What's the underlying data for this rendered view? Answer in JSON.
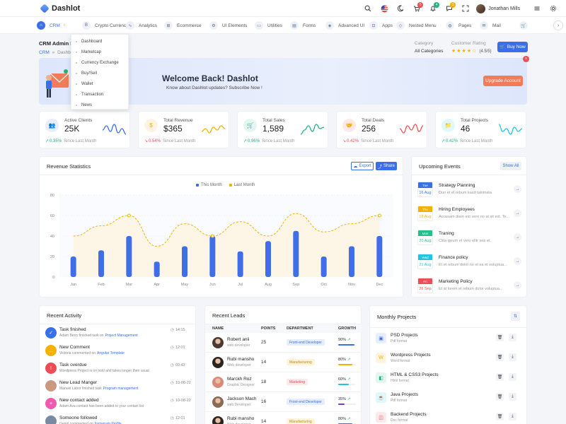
{
  "brand": {
    "name": "Dashlot"
  },
  "header": {
    "user_name": "Jonathan Mills",
    "badges": {
      "cart": "5",
      "notifications": "4",
      "messages": "2"
    }
  },
  "nav": {
    "items": [
      {
        "label": "CRM",
        "icon": "home-icon",
        "caret": "›"
      },
      {
        "label": "Crypto Currency",
        "icon": "bitcoin-icon",
        "caret": "⌄"
      },
      {
        "label": "Analytics",
        "icon": "chart-line-icon",
        "caret": ""
      },
      {
        "label": "Ecommerce",
        "icon": "cart-icon",
        "caret": ""
      },
      {
        "label": "UI Elements",
        "icon": "ui-elements-icon",
        "caret": ""
      },
      {
        "label": "Utilities",
        "icon": "briefcase-icon",
        "caret": ""
      },
      {
        "label": "Forms",
        "icon": "forms-icon",
        "caret": ""
      },
      {
        "label": "Advanced UI",
        "icon": "advanced-ui-icon",
        "caret": ""
      },
      {
        "label": "Apps",
        "icon": "apps-icon",
        "caret": ""
      },
      {
        "label": "Nested Menu",
        "icon": "nested-menu-icon",
        "caret": ""
      },
      {
        "label": "Pages",
        "icon": "pages-icon",
        "caret": ""
      },
      {
        "label": "Mail",
        "icon": "mail-icon",
        "caret": ""
      }
    ],
    "dropdown": [
      "Dashboard",
      "Marketcap",
      "Currency Exchange",
      "Buy/Sell",
      "Wallet",
      "Transaction",
      "News"
    ]
  },
  "page": {
    "title": "CRM Admin Dashboard",
    "breadcrumb_link": "CRM",
    "breadcrumb_sep": "»",
    "breadcrumb_current": "Dashboard",
    "category_label": "Category",
    "category_value": "All Categories",
    "rating_label": "Customer Rating",
    "rating_stars": "★★★★☆",
    "rating_value": "(4.5/5)",
    "buy_label": "Buy Now"
  },
  "banner": {
    "title": "Welcome Back! Dashlot",
    "subtitle": "Know about Dashlot updates? Subscribe Now !",
    "button": "Upgrade Account",
    "close": "×"
  },
  "stats": [
    {
      "label": "Active Clients",
      "value": "25K",
      "change": "0.35%",
      "dir": "up",
      "arrow": "↗",
      "since": "Since Last Month",
      "icon": "users-icon",
      "glyph": "👥",
      "icon_bg": "#e8eeff",
      "icon_color": "#3a6fe8",
      "line_color": "#3a6fe8"
    },
    {
      "label": "Total Revenue",
      "value": "$365",
      "change": "0.54%",
      "dir": "down",
      "arrow": "↘",
      "since": "Since Last Month",
      "icon": "dollar-icon",
      "glyph": "$",
      "icon_bg": "#fff4e0",
      "icon_color": "#f6b100",
      "line_color": "#f6b100"
    },
    {
      "label": "Total Sales",
      "value": "1,589",
      "change": "0.96%",
      "dir": "up",
      "arrow": "↗",
      "since": "Since Last Month",
      "icon": "shopping-cart-icon",
      "glyph": "🛒",
      "icon_bg": "#e3f7f0",
      "icon_color": "#22b07d",
      "line_color": "#22b07d"
    },
    {
      "label": "Total Deals",
      "value": "256",
      "change": "0.42%",
      "dir": "down",
      "arrow": "↘",
      "since": "Since Last Month",
      "icon": "handshake-icon",
      "glyph": "🤝",
      "icon_bg": "#fde8ea",
      "icon_color": "#ef4d56",
      "line_color": "#ef4d56"
    },
    {
      "label": "Total Projects",
      "value": "46",
      "change": "0.42%",
      "dir": "up",
      "arrow": "↗",
      "since": "Since Last Month",
      "icon": "folder-icon",
      "glyph": "📁",
      "icon_bg": "#e0f8fb",
      "icon_color": "#1ec6e2",
      "line_color": "#1ec6e2"
    }
  ],
  "revenue": {
    "title": "Revenue Statistics",
    "export_label": "Export",
    "share_label": "Share"
  },
  "chart_data": {
    "type": "bar",
    "title": "Revenue Statistics",
    "categories": [
      "Jan",
      "Feb",
      "Mar",
      "Apr",
      "May",
      "Jun",
      "Jul",
      "Aug",
      "Sep",
      "Oct",
      "Nov",
      "Dec"
    ],
    "series": [
      {
        "name": "This Month",
        "type": "bar",
        "color": "#3f6ee8",
        "values": [
          20,
          26,
          40,
          15,
          30,
          40,
          25,
          35,
          45,
          20,
          30,
          40
        ]
      },
      {
        "name": "Last Month",
        "type": "line",
        "color": "#f6b100",
        "values": [
          40,
          50,
          60,
          30,
          52,
          40,
          54,
          40,
          62,
          44,
          52,
          60
        ]
      }
    ],
    "yticks": [
      0,
      20,
      40,
      60,
      80
    ],
    "ylim": [
      0,
      80
    ],
    "legend": "top-center",
    "grid": true
  },
  "events": {
    "title": "Upcoming Events",
    "show_all": "Show All",
    "items": [
      {
        "day": "Tue",
        "date": "16 Aug",
        "title": "Strategy Planning",
        "desc": "Duo et et rebum kasd takimata",
        "color": "#3a6fe8"
      },
      {
        "day": "Thu",
        "date": "18 Aug",
        "title": "Hiring Employees",
        "desc": "Accusam diam est vero no at sit est. Te...",
        "color": "#f6b100"
      },
      {
        "day": "Mon",
        "date": "20 Aug",
        "title": "Traning",
        "desc": "Clita ipsum et vero elitr sea et.",
        "color": "#22c08a"
      },
      {
        "day": "Wed",
        "date": "21 Aug",
        "title": "Finance policy",
        "desc": "Et et rebum dolor no et ea et voluptua...",
        "color": "#1ec6e2"
      },
      {
        "day": "Fri",
        "date": "26 Sep",
        "title": "Marketing Policy",
        "desc": "Et at lorem et rebum dolor voluptua...",
        "color": "#ef4d56"
      }
    ]
  },
  "activity": {
    "title": "Recent Activity",
    "items": [
      {
        "title": "Task finished",
        "desc": "Adam Berry finished task on",
        "link": "Project Management",
        "time": "14:15",
        "color": "#3a6fe8",
        "glyph": "✓",
        "icon": "check-icon"
      },
      {
        "title": "New Comment",
        "desc": "Victoria commented on",
        "link": "Angular Template",
        "time": "12:01",
        "color": "#f6b100",
        "glyph": "…",
        "icon": "comment-icon"
      },
      {
        "title": "Task overdue",
        "desc": "Wordpress Project is on hold and takes longer then usual",
        "link": "",
        "time": "09:43",
        "color": "#ef4d56",
        "glyph": "!",
        "icon": "alert-icon"
      },
      {
        "title": "New Lead Manger",
        "desc": "Manuel Labor finished task",
        "link": "Program management",
        "time": "10-08-22",
        "color": "#c89b80",
        "glyph": "",
        "icon": "avatar-icon"
      },
      {
        "title": "New contact added",
        "desc": "Adam Ava contact has been added to your contact list",
        "link": "",
        "time": "10-08-22",
        "color": "#ef5ab0",
        "glyph": "+",
        "icon": "contact-add-icon"
      },
      {
        "title": "Someone followed",
        "desc": "Genni commented on",
        "link": "Instagram Profile",
        "time": "12:01",
        "color": "#7a8aa0",
        "glyph": "",
        "icon": "avatar-icon"
      }
    ]
  },
  "leads": {
    "title": "Recent Leads",
    "headers": [
      "NAME",
      "POINTS",
      "DEPARTMENT",
      "GROWTH"
    ],
    "rows": [
      {
        "name": "Robert anii",
        "role": "web developer",
        "points": "25",
        "dept": "Front-end Developer",
        "dept_bg": "#e5edff",
        "dept_color": "#3a6fe8",
        "pct": "90%",
        "growth": 90,
        "bar": "#3a6fe8",
        "arrow": "↗",
        "av": "#4a3a32"
      },
      {
        "name": "Rubi mansho",
        "role": "Web developer",
        "points": "14",
        "dept": "Manufacturing",
        "dept_bg": "#fff3d9",
        "dept_color": "#c48b00",
        "pct": "80%",
        "growth": 80,
        "bar": "#f6b100",
        "arrow": "↗",
        "av": "#2c2420"
      },
      {
        "name": "Marckh Roz",
        "role": "Graphic Designer",
        "points": "18",
        "dept": "Marketing",
        "dept_bg": "#fde8ea",
        "dept_color": "#ef4d56",
        "pct": "60%",
        "growth": 60,
        "bar": "#1ec6e2",
        "arrow": "↗",
        "av": "#d98a7a"
      },
      {
        "name": "Jackson Mach",
        "role": "web Developer",
        "points": "16",
        "dept": "Front-end Developer",
        "dept_bg": "#e5edff",
        "dept_color": "#3a6fe8",
        "pct": "35%",
        "growth": 35,
        "bar": "#6f42c1",
        "arrow": "↗",
        "av": "#8a6a55"
      },
      {
        "name": "Rubi mansho",
        "role": "Web developer",
        "points": "14",
        "dept": "Manufacturing",
        "dept_bg": "#fff3d9",
        "dept_color": "#c48b00",
        "pct": "80%",
        "growth": 80,
        "bar": "#3a6fe8",
        "arrow": "↗",
        "av": "#2c2420"
      }
    ]
  },
  "projects": {
    "title": "Monthly Projects",
    "items": [
      {
        "name": "PSD Projects",
        "type": "Pdf format",
        "color": "#3a6fe8",
        "bg": "#e8eeff",
        "glyph": "▣",
        "icon": "psd-icon"
      },
      {
        "name": "Wordpress Projects",
        "type": "Word format",
        "color": "#f6b100",
        "bg": "#fff4e0",
        "glyph": "W",
        "icon": "wordpress-icon"
      },
      {
        "name": "HTML & CSS3 Projects",
        "type": "Html format",
        "color": "#22b07d",
        "bg": "#e3f7f0",
        "glyph": "◧",
        "icon": "html-icon"
      },
      {
        "name": "Java Projects",
        "type": "Pdf format",
        "color": "#1ec6e2",
        "bg": "#e0f8fb",
        "glyph": "☕",
        "icon": "java-icon"
      },
      {
        "name": "Backend Projects",
        "type": "Doc format",
        "color": "#ef4d56",
        "bg": "#fde8ea",
        "glyph": "◫",
        "icon": "backend-icon"
      }
    ]
  }
}
